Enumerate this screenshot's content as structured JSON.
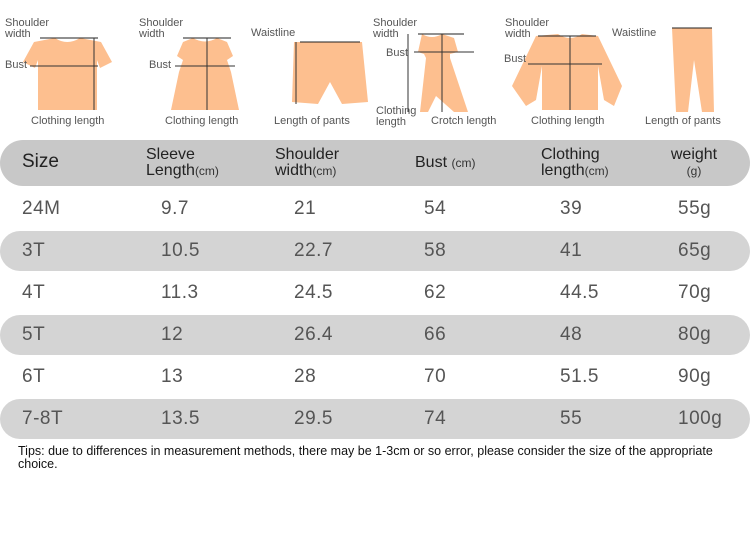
{
  "diagrams": [
    {
      "name": "tshirt",
      "labels": {
        "shoulder": "Shoulder\nwidth",
        "bust": "Bust",
        "caption": "Clothing length"
      }
    },
    {
      "name": "dress",
      "labels": {
        "shoulder": "Shoulder\nwidth",
        "bust": "Bust",
        "caption": "Clothing length"
      }
    },
    {
      "name": "shorts",
      "labels": {
        "waist": "Waistline",
        "caption": "Length of pants"
      }
    },
    {
      "name": "romper",
      "labels": {
        "shoulder": "Shoulder\nwidth",
        "bust": "Bust",
        "clothing": "Clothing\nlength",
        "caption": "Crotch length"
      }
    },
    {
      "name": "jacket",
      "labels": {
        "shoulder": "Shoulder\nwidth",
        "bust": "Bust",
        "caption": "Clothing length"
      }
    },
    {
      "name": "pants",
      "labels": {
        "waist": "Waistline",
        "caption": "Length of pants"
      }
    }
  ],
  "table": {
    "headers": [
      {
        "main": "Size",
        "unit": ""
      },
      {
        "main": "Sleeve\nLength",
        "unit": "(cm)"
      },
      {
        "main": "Shoulder\nwidth",
        "unit": "(cm)"
      },
      {
        "main": "Bust",
        "unit": "(cm)"
      },
      {
        "main": "Clothing\nlength",
        "unit": "(cm)"
      },
      {
        "main": "weight",
        "unit": "(g)"
      }
    ],
    "rows": [
      [
        "24M",
        "9.7",
        "21",
        "54",
        "39",
        "55g"
      ],
      [
        "3T",
        "10.5",
        "22.7",
        "58",
        "41",
        "65g"
      ],
      [
        "4T",
        "11.3",
        "24.5",
        "62",
        "44.5",
        "70g"
      ],
      [
        "5T",
        "12",
        "26.4",
        "66",
        "48",
        "80g"
      ],
      [
        "6T",
        "13",
        "28",
        "70",
        "51.5",
        "90g"
      ],
      [
        "7-8T",
        "13.5",
        "29.5",
        "74",
        "55",
        "100g"
      ]
    ]
  },
  "tips": "Tips: due to differences in measurement methods, there may be 1-3cm or so error, please consider the size of the appropriate choice.",
  "colors": {
    "garment": "#fdbf8f",
    "header": "#c8c8c8",
    "shade": "#d4d4d4"
  }
}
